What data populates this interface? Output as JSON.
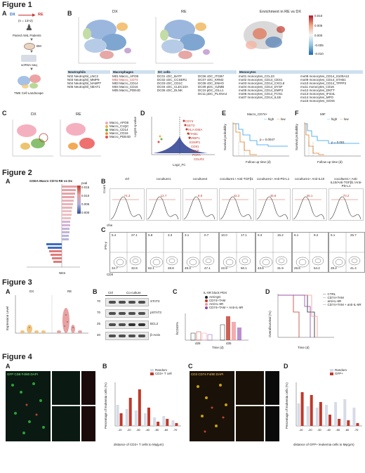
{
  "figure1": {
    "title": "Figure 1",
    "panelA": {
      "label": "A",
      "dx": "DX",
      "re": "RE",
      "n": "(n = 13×2)",
      "paired": "Paired AML Patients",
      "bm": "BM",
      "scrna": "scRNA-seq",
      "tme": "TME Cell Landscape"
    },
    "panelB": {
      "label": "B",
      "umap_dx": "DX",
      "umap_re": "RE",
      "enrich_title": "Enrichment in RE vs DX",
      "scale_ticks": [
        "0.010",
        "0.005",
        "0.000",
        "-0.005",
        "-0.010"
      ],
      "groups": [
        {
          "head": "Neutrophils",
          "items": [
            "N02 Neutrophil_LNC2",
            "N03 Neutrophil_MMP9",
            "N04 Neutrophil_NAMPT",
            "N05 Neutrophil_NEAT1"
          ]
        },
        {
          "head": "Macrophages",
          "items": [
            "M01 Macro_APOE",
            "M02 Macro_CD74",
            "M03 Macro_CD14",
            "M04 Macro_CD16",
            "M05 Macro_PDE4D"
          ]
        },
        {
          "head": "DC cells",
          "items": [
            "DC01 cDC_BATF",
            "DC02 cDC_CCSER1",
            "DC03 cDC_CD1C",
            "DC04 cDC_CLEC10A",
            "DC05 cDC_DLNK",
            "DC06 cDC_ITGB7",
            "DC07 cDC_KRM2",
            "DC08 cDC_ENHO",
            "DC09 pDC_GZMB",
            "DC10 pDC_IGLL1",
            "DC11 pDC_PLXNA4"
          ]
        },
        {
          "head": "Monocytes",
          "items": [
            "mo01 monocytes_CCL23",
            "mo02 monocytes_CD14_CES1",
            "mo03 monocytes_CD14_CXCL8",
            "mo04 monocytes_CD14_DYSF",
            "mo05 monocytes_CD14_EMP3",
            "mo06 monocytes_CD14_FCN1",
            "mo07 monocytes_CD14_IL1B",
            "mo08 monocytes_CD14_S100A12",
            "mo09 monocytes_CD14_STAB1",
            "mo10 monocytes_CD14_TPPP3",
            "mo11 monocytes_CD16",
            "mo12 monocytes_DNTT",
            "mo13 monocytes_IFI44L",
            "mo14 monocytes_MPO",
            "mo15 monocytes_SOX6"
          ]
        }
      ]
    },
    "panelC": {
      "label": "C",
      "dx": "DX",
      "re": "RE",
      "legend": [
        "Macro_APOE",
        "Macro_C1QC",
        "Macro_CD14",
        "Macro_CD16",
        "Macro_PDE4D"
      ],
      "legend_colors": [
        "#f4a7b9",
        "#e9b44c",
        "#6ab04c",
        "#f0932b",
        "#eb4d4b"
      ]
    },
    "panelD": {
      "label": "D",
      "xlabel": "Log2_FC",
      "ylabel": "-Log10 q-value",
      "genes": [
        "CD74",
        "SET3",
        "HLA-DMA",
        "STAB1",
        "ARBP1",
        "ESMP1",
        "CD81",
        "LRSP",
        "PCFA",
        "CDLR2"
      ]
    },
    "panelE": {
      "label": "E",
      "title": "Macro_CD74+",
      "legend_high": "high",
      "legend_low": "low",
      "pvalue": "p = 0.0047",
      "xlabel": "Follow up time (d)",
      "ylabel": "Survival probability"
    },
    "panelF": {
      "label": "F",
      "title": "MIF",
      "legend_high": "high",
      "legend_low": "low",
      "pvalue": "p = 0.001",
      "xlabel": "Follow up time (d)",
      "ylabel": "Survival probability"
    }
  },
  "figure2": {
    "title": "Figure 2",
    "panelA": {
      "label": "A",
      "title": "GSEA-Macro CD74 RE vs Dx",
      "xlabel": "NES",
      "pval_label": "pval",
      "pval_ticks": [
        "0.015",
        "0.010",
        "0.005",
        "0.000"
      ]
    },
    "panelB": {
      "label": "B",
      "xlabel": "cfse",
      "ylabel": "Count",
      "conditions": [
        "ctrl",
        "coculture1",
        "coculture2",
        "coculture1+ Anti-TGFβ1",
        "coculture1+ Anti-PD-L1",
        "coculture1+ Anti-IL10",
        "coculture1+ Anti-IL10/Anti-TGFβ1 /Anti-PD-L1"
      ],
      "values": [
        "74.3",
        "12.7",
        "9.8",
        "42.2",
        "45.8",
        "35.1",
        "70.2"
      ]
    },
    "panelC": {
      "label": "C",
      "xlabel": "CD8",
      "ylabel": "IFN-γ",
      "quadrants": [
        [
          "5.4",
          "27.1",
          "34.7",
          "32.8"
        ],
        [
          "5.8",
          "3.3",
          "62.1",
          "28.8"
        ],
        [
          "3.1",
          "0.7",
          "49.3",
          "47.1"
        ],
        [
          "10.0",
          "17.1",
          "22.8",
          "50.1"
        ],
        [
          "9.3",
          "15.2",
          "43.6",
          "31.9"
        ],
        [
          "6.1",
          "9.2",
          "29.6",
          "54.2"
        ],
        [
          "5.1",
          "25.7",
          "28.2",
          "41.4"
        ]
      ]
    }
  },
  "figure3": {
    "title": "Figure 3",
    "panelA": {
      "label": "A",
      "dx": "DX",
      "re": "RE",
      "ylabel": "Expression Level"
    },
    "panelB": {
      "label": "B",
      "ctrl": "Ctrl",
      "coculture": "Co-culture",
      "mw": [
        "70",
        "70",
        "25",
        "40"
      ],
      "bands": [
        "STAT3",
        "pSTAT3",
        "BCL2",
        "β-Actin"
      ]
    },
    "panelC": {
      "label": "C",
      "title": "IL-6R block PDX",
      "legend": [
        "Anti-IgG",
        "CD74+TAM",
        "Anti-IL-6R",
        "CD74+TAM + Anti-IL-6R"
      ],
      "xlabel": "Time (d)",
      "ylabel": "hCD45%",
      "xticks": [
        "d28",
        "d35"
      ]
    },
    "panelD": {
      "label": "D",
      "legend": [
        "CTRL",
        "CD74+TAM",
        "anti-IL-6R",
        "CD74+TAM + anti-IL-6R"
      ],
      "xlabel": "Time (d)",
      "ylabel": "Overallsurvival (%)"
    }
  },
  "figure4": {
    "title": "Figure 4",
    "panelA": {
      "label": "A",
      "stain": "GFP CD8 F4/80 DAPI"
    },
    "panelB": {
      "label": "B",
      "legend": [
        "Random",
        "CD3+ T cell"
      ],
      "xlabel": "distance of CD3+ T cells to Mφ(μm)",
      "ylabel": "Percentage of leukemia cells (%)",
      "xticks": [
        "-10",
        "-20",
        "-30",
        "-40",
        "-50",
        "-60",
        "-70"
      ]
    },
    "panelC": {
      "label": "C",
      "stain": "CD3 CD74 F4/80 DAPI"
    },
    "panelD": {
      "label": "D",
      "legend": [
        "Random",
        "GFP+"
      ],
      "xlabel": "distance of GFP+ leukemia cells to Mφ(μm)",
      "ylabel": "Percentage of leukemia cells (%)",
      "xticks": [
        "-10",
        "-20",
        "-30",
        "-40",
        "-50",
        "-60",
        "-70"
      ]
    }
  }
}
